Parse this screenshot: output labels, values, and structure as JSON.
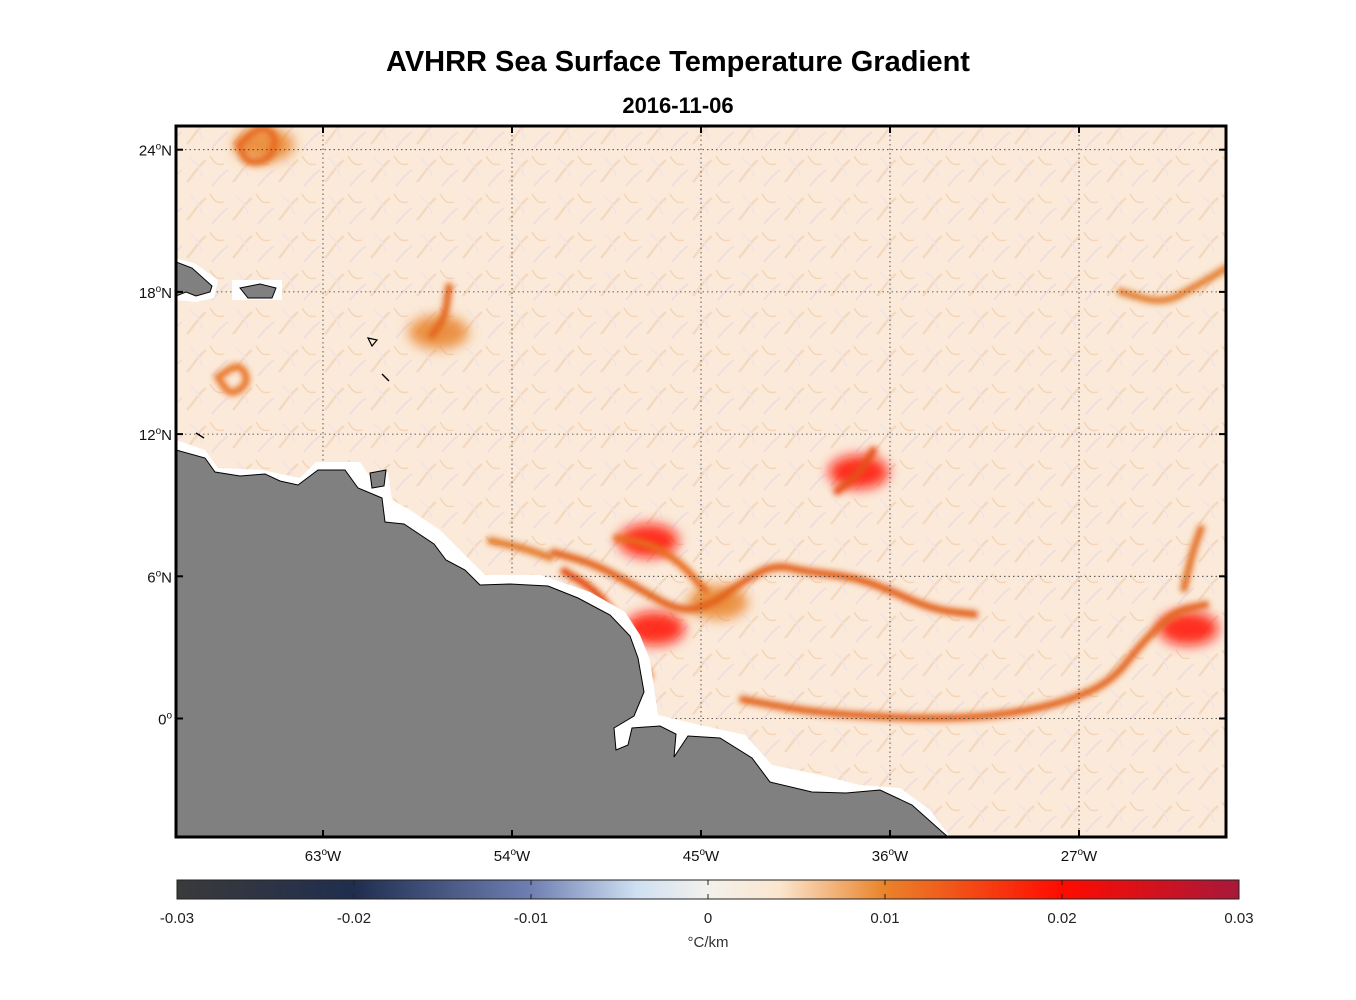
{
  "title": "AVHRR Sea Surface Temperature Gradient",
  "subtitle": "2016-11-06",
  "map": {
    "lon_range": [
      -70,
      -20
    ],
    "lat_range": [
      -5,
      25
    ],
    "lon_ticks": [
      {
        "value": -63,
        "label": "63",
        "suffix": "W"
      },
      {
        "value": -54,
        "label": "54",
        "suffix": "W"
      },
      {
        "value": -45,
        "label": "45",
        "suffix": "W"
      },
      {
        "value": -36,
        "label": "36",
        "suffix": "W"
      },
      {
        "value": -27,
        "label": "27",
        "suffix": "W"
      }
    ],
    "lat_ticks": [
      {
        "value": 24,
        "label": "24",
        "suffix": "N"
      },
      {
        "value": 18,
        "label": "18",
        "suffix": "N"
      },
      {
        "value": 12,
        "label": "12",
        "suffix": "N"
      },
      {
        "value": 6,
        "label": "6",
        "suffix": "N"
      },
      {
        "value": 0,
        "label": "0",
        "suffix": ""
      }
    ],
    "land_color": "#808080",
    "ocean_base_color": "#fbeadb",
    "gradient_fronts": [
      {
        "name": "north-brazil-current-front",
        "color": "#e2601a",
        "points": [
          [
            -52,
            7
          ],
          [
            -50,
            6.5
          ],
          [
            -48,
            5.5
          ],
          [
            -46,
            4.5
          ],
          [
            -44.5,
            4.8
          ],
          [
            -43,
            5.8
          ],
          [
            -41.5,
            6.5
          ],
          [
            -40,
            6.2
          ],
          [
            -38,
            6
          ],
          [
            -36.5,
            5.6
          ],
          [
            -34,
            4.6
          ],
          [
            -32,
            4.4
          ]
        ]
      },
      {
        "name": "coastal-front",
        "color": "#e24a12",
        "points": [
          [
            -51.5,
            6.2
          ],
          [
            -50,
            5.4
          ],
          [
            -49,
            4.2
          ],
          [
            -48.5,
            3.2
          ],
          [
            -47.5,
            1.8
          ]
        ]
      },
      {
        "name": "retroflection-loop",
        "color": "#e86a1e",
        "points": [
          [
            -49,
            7.6
          ],
          [
            -47.5,
            7.4
          ],
          [
            -46,
            6.6
          ],
          [
            -44.8,
            5.4
          ]
        ]
      },
      {
        "name": "equatorial-front",
        "color": "#e2661c",
        "points": [
          [
            -43,
            0.8
          ],
          [
            -40,
            0.3
          ],
          [
            -37,
            0.1
          ],
          [
            -34,
            0
          ],
          [
            -31,
            0.1
          ],
          [
            -28,
            0.6
          ],
          [
            -25.5,
            1.5
          ],
          [
            -24,
            3.2
          ],
          [
            -22.5,
            4.5
          ],
          [
            -21,
            4.8
          ]
        ]
      },
      {
        "name": "guiana-shelf-front",
        "color": "#e27a2a",
        "points": [
          [
            -55,
            7.5
          ],
          [
            -53.5,
            7.2
          ],
          [
            -52.2,
            6.8
          ]
        ]
      },
      {
        "name": "eddy-front-east",
        "color": "#e5511a",
        "points": [
          [
            -38.5,
            9.6
          ],
          [
            -37.5,
            10.3
          ],
          [
            -36.8,
            11.3
          ]
        ]
      },
      {
        "name": "eddy-front-west",
        "color": "#e3671e",
        "points": [
          [
            -57.8,
            16.2
          ],
          [
            -57.2,
            16.9
          ],
          [
            -57,
            18.2
          ]
        ]
      },
      {
        "name": "eddy-ring-north",
        "color": "#e76b22",
        "points": [
          [
            -67,
            24.2
          ],
          [
            -66,
            25
          ],
          [
            -65.2,
            24.6
          ],
          [
            -65.5,
            23.6
          ],
          [
            -66.6,
            23.4
          ],
          [
            -67,
            24.2
          ]
        ]
      },
      {
        "name": "eddy-ring-caribbean",
        "color": "#e9782c",
        "points": [
          [
            -68,
            14.4
          ],
          [
            -67,
            15
          ],
          [
            -66.5,
            14.2
          ],
          [
            -67.4,
            13.6
          ],
          [
            -68,
            14.4
          ]
        ]
      },
      {
        "name": "eastern-front-north",
        "color": "#e48134",
        "points": [
          [
            -25,
            18
          ],
          [
            -23,
            17.5
          ],
          [
            -21.5,
            18.2
          ],
          [
            -20,
            19
          ]
        ]
      },
      {
        "name": "eastern-front-mid",
        "color": "#e3722a",
        "points": [
          [
            -22,
            5.5
          ],
          [
            -21.6,
            7
          ],
          [
            -21.2,
            8
          ]
        ]
      }
    ],
    "front_patches": [
      {
        "name": "patch-retroflection",
        "lon": -47.5,
        "lat": 7.5,
        "value": 0.022
      },
      {
        "name": "patch-eddy-east",
        "lon": -37.5,
        "lat": 10.4,
        "value": 0.021
      },
      {
        "name": "patch-eddy-west",
        "lon": -57.5,
        "lat": 16.3,
        "value": 0.018
      },
      {
        "name": "patch-amazon-mouth",
        "lon": -47.2,
        "lat": 3.8,
        "value": 0.02
      },
      {
        "name": "patch-eastern",
        "lon": -21.8,
        "lat": 3.8,
        "value": 0.02
      },
      {
        "name": "patch-north-ring",
        "lon": -65.8,
        "lat": 24.2,
        "value": 0.017
      },
      {
        "name": "patch-front-center",
        "lon": -44.2,
        "lat": 4.9,
        "value": 0.018
      }
    ]
  },
  "colorbar": {
    "min": -0.03,
    "max": 0.03,
    "tick_labels": [
      "-0.03",
      "-0.02",
      "-0.01",
      "0",
      "0.01",
      "0.02",
      "0.03"
    ],
    "tick_values": [
      -0.03,
      -0.02,
      -0.01,
      0,
      0.01,
      0.02,
      0.03
    ],
    "units_label": "°C/km",
    "color_stops": [
      {
        "value": -0.03,
        "color": "#3a3a3a"
      },
      {
        "value": -0.02,
        "color": "#1f2e4f"
      },
      {
        "value": -0.01,
        "color": "#6f7fb2"
      },
      {
        "value": -0.004,
        "color": "#cfe0f2"
      },
      {
        "value": 0,
        "color": "#f3f1ec"
      },
      {
        "value": 0.004,
        "color": "#fbe6cf"
      },
      {
        "value": 0.01,
        "color": "#e9832a"
      },
      {
        "value": 0.02,
        "color": "#ff0b00"
      },
      {
        "value": 0.03,
        "color": "#a8183a"
      }
    ]
  }
}
